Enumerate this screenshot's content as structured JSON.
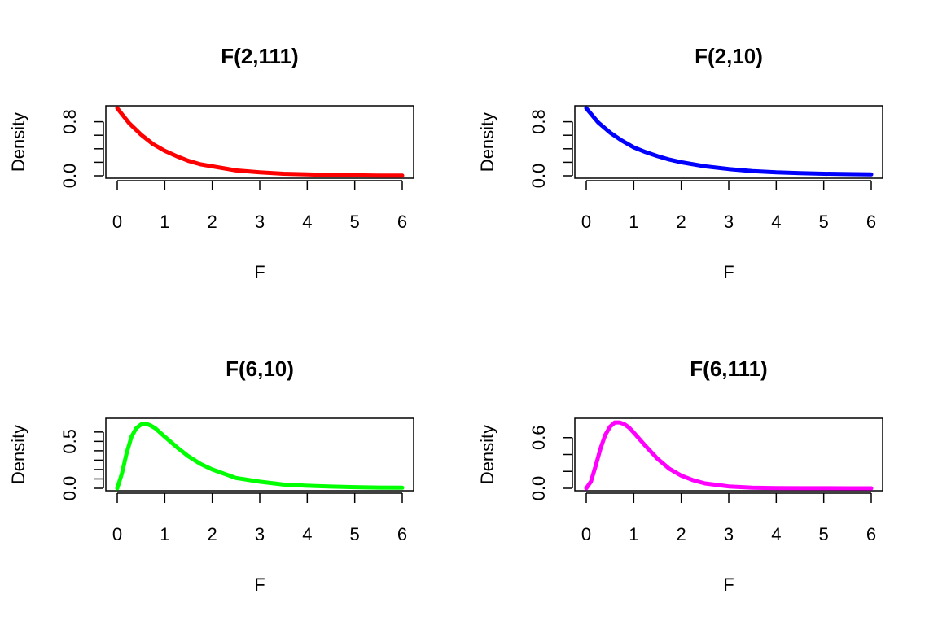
{
  "chart_data": [
    {
      "type": "line",
      "title": "F(2,111)",
      "xlabel": "F",
      "ylabel": "Density",
      "color": "#ff0000",
      "xlim": [
        0,
        6
      ],
      "ylim": [
        0,
        1
      ],
      "xticks": [
        0,
        1,
        2,
        3,
        4,
        5,
        6
      ],
      "yticks_labeled": [
        0.0,
        0.8
      ],
      "ytick_labels": [
        "0.0",
        "0.8"
      ],
      "yticks_minor": [
        0.2,
        0.4,
        0.6
      ],
      "series": [
        {
          "x": [
            0,
            0.25,
            0.5,
            0.75,
            1,
            1.25,
            1.5,
            1.75,
            2,
            2.5,
            3,
            3.5,
            4,
            4.5,
            5,
            5.5,
            6
          ],
          "values": [
            1.0,
            0.78,
            0.61,
            0.47,
            0.37,
            0.29,
            0.22,
            0.17,
            0.14,
            0.08,
            0.05,
            0.03,
            0.02,
            0.012,
            0.007,
            0.004,
            0.003
          ]
        }
      ]
    },
    {
      "type": "line",
      "title": "F(2,10)",
      "xlabel": "F",
      "ylabel": "Density",
      "color": "#0000ff",
      "xlim": [
        0,
        6
      ],
      "ylim": [
        0,
        1
      ],
      "xticks": [
        0,
        1,
        2,
        3,
        4,
        5,
        6
      ],
      "yticks_labeled": [
        0.0,
        0.8
      ],
      "ytick_labels": [
        "0.0",
        "0.8"
      ],
      "yticks_minor": [
        0.2,
        0.4,
        0.6
      ],
      "series": [
        {
          "x": [
            0,
            0.25,
            0.5,
            0.75,
            1,
            1.25,
            1.5,
            1.75,
            2,
            2.5,
            3,
            3.5,
            4,
            4.5,
            5,
            5.5,
            6
          ],
          "values": [
            1.0,
            0.79,
            0.64,
            0.52,
            0.42,
            0.35,
            0.29,
            0.24,
            0.2,
            0.14,
            0.1,
            0.07,
            0.05,
            0.04,
            0.03,
            0.025,
            0.02
          ]
        }
      ]
    },
    {
      "type": "line",
      "title": "F(6,10)",
      "xlabel": "F",
      "ylabel": "Density",
      "color": "#00ff00",
      "xlim": [
        0,
        6
      ],
      "ylim": [
        0,
        0.72
      ],
      "xticks": [
        0,
        1,
        2,
        3,
        4,
        5,
        6
      ],
      "yticks_labeled": [
        0.0,
        0.5
      ],
      "ytick_labels": [
        "0.0",
        "0.5"
      ],
      "yticks_minor": [
        0.1,
        0.2,
        0.3,
        0.4,
        0.6
      ],
      "series": [
        {
          "x": [
            0,
            0.1,
            0.2,
            0.3,
            0.4,
            0.5,
            0.6,
            0.7,
            0.8,
            1,
            1.25,
            1.5,
            1.75,
            2,
            2.5,
            3,
            3.5,
            4,
            4.5,
            5,
            5.5,
            6
          ],
          "values": [
            0,
            0.16,
            0.38,
            0.55,
            0.64,
            0.68,
            0.69,
            0.67,
            0.64,
            0.55,
            0.44,
            0.34,
            0.26,
            0.2,
            0.11,
            0.07,
            0.04,
            0.027,
            0.018,
            0.012,
            0.008,
            0.006
          ]
        }
      ]
    },
    {
      "type": "line",
      "title": "F(6,111)",
      "xlabel": "F",
      "ylabel": "Density",
      "color": "#ff00ff",
      "xlim": [
        0,
        6
      ],
      "ylim": [
        0,
        0.8
      ],
      "xticks": [
        0,
        1,
        2,
        3,
        4,
        5,
        6
      ],
      "yticks_labeled": [
        0.0,
        0.6
      ],
      "ytick_labels": [
        "0.0",
        "0.6"
      ],
      "yticks_minor": [
        0.2,
        0.4
      ],
      "series": [
        {
          "x": [
            0,
            0.1,
            0.2,
            0.3,
            0.4,
            0.5,
            0.6,
            0.7,
            0.8,
            0.9,
            1,
            1.25,
            1.5,
            1.75,
            2,
            2.25,
            2.5,
            3,
            3.5,
            4,
            4.5,
            5,
            5.5,
            6
          ],
          "values": [
            0,
            0.08,
            0.27,
            0.47,
            0.63,
            0.73,
            0.78,
            0.78,
            0.76,
            0.72,
            0.66,
            0.5,
            0.35,
            0.23,
            0.15,
            0.095,
            0.058,
            0.022,
            0.008,
            0.003,
            0.001,
            0.0005,
            0.0002,
            0.0001
          ]
        }
      ]
    }
  ]
}
